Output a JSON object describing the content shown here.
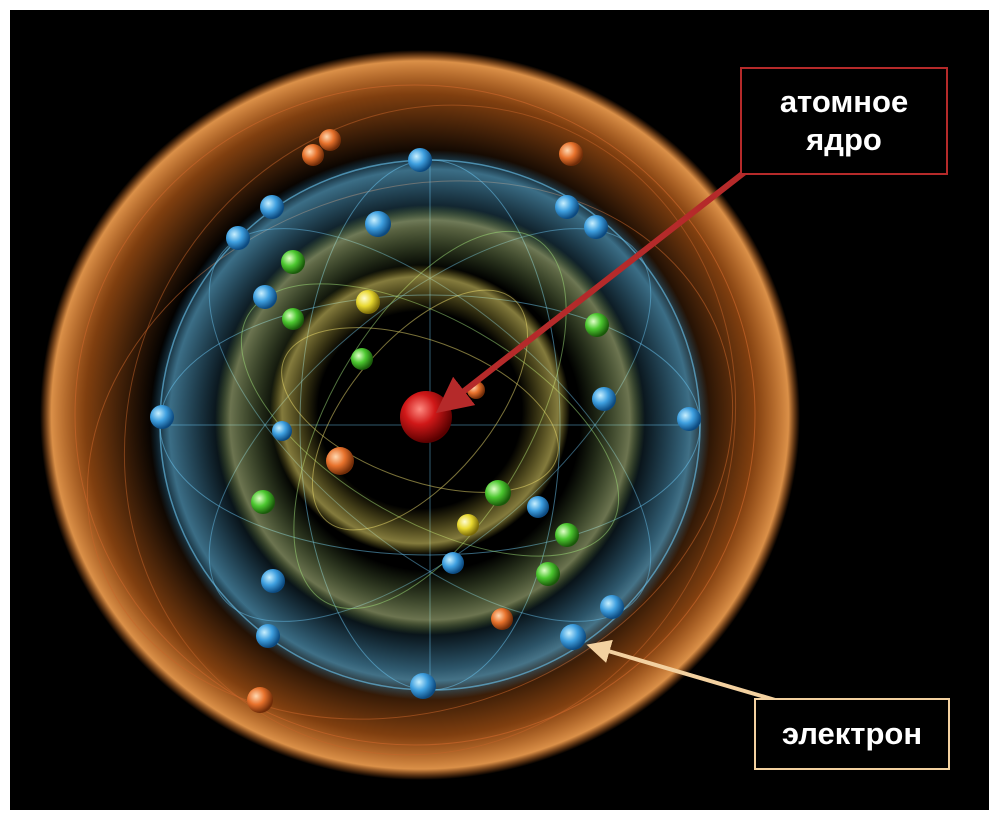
{
  "labels": {
    "nucleus": {
      "line1": "атомное",
      "line2": "ядро"
    },
    "electron": {
      "text": "электрон"
    }
  },
  "colors": {
    "background": "#000000",
    "nucleus": "#c8141a",
    "outer_shell": "#e8721c",
    "blue_shell": "#4fb0e8",
    "green_shell": "#5ad23c",
    "yellow_shell": "#e6d23c",
    "nucleus_arrow": "#b52a2a",
    "electron_arrow": "#f3d1a0"
  }
}
